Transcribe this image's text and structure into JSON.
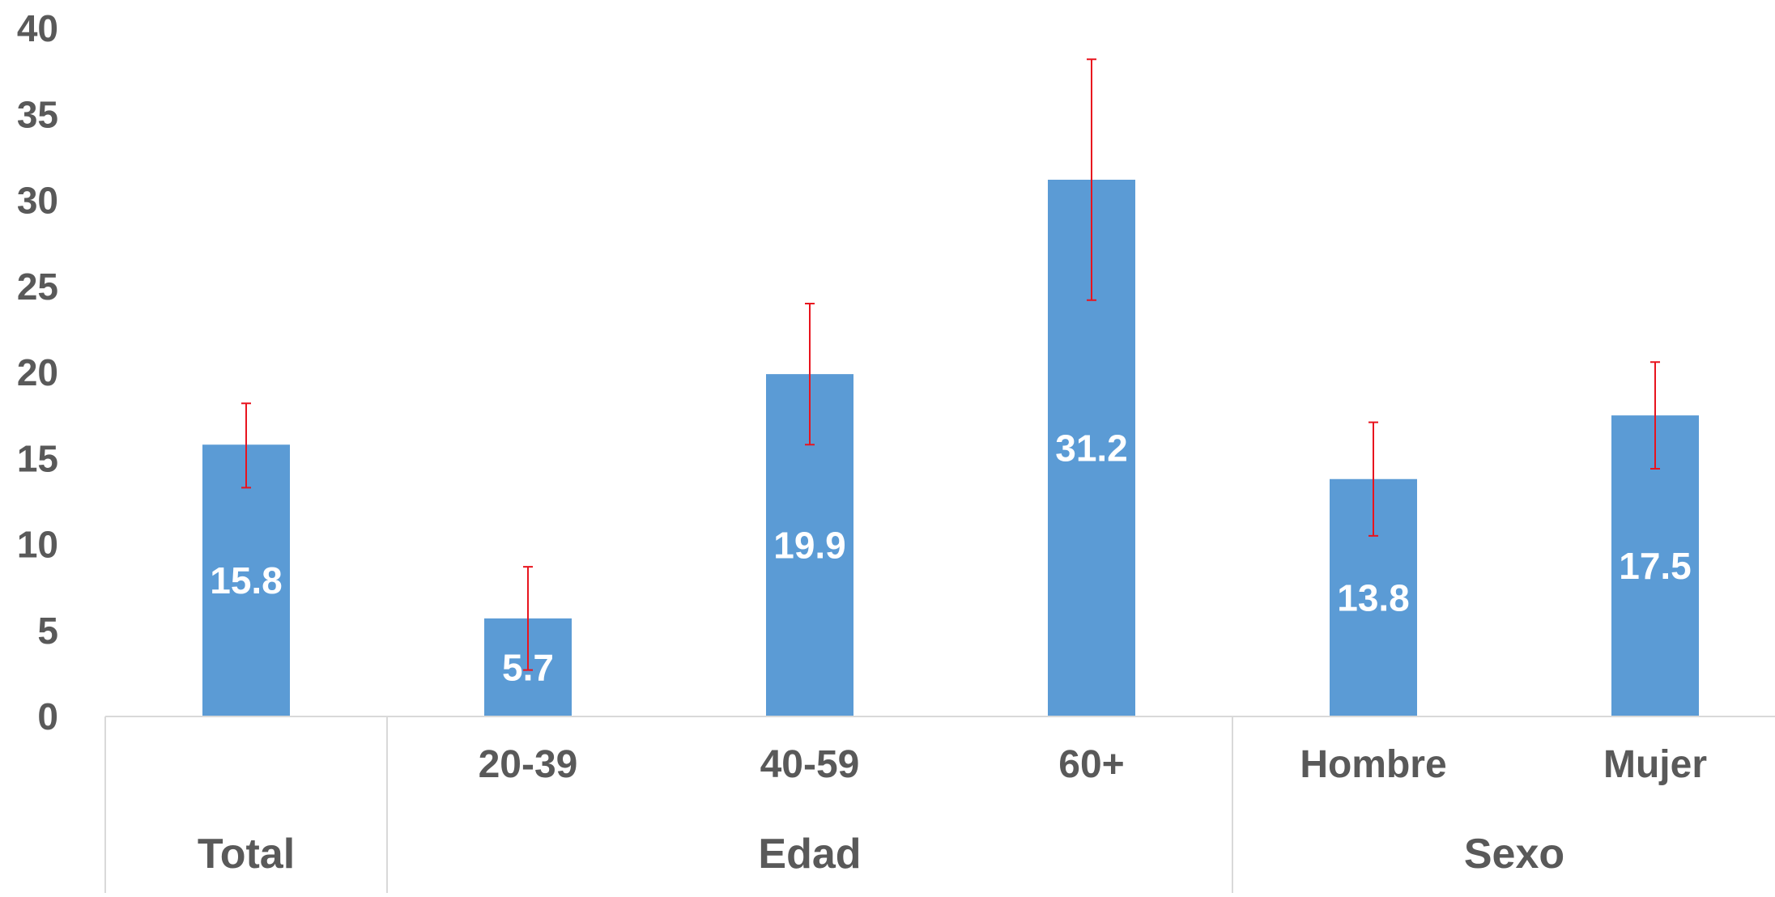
{
  "chart_data": {
    "type": "bar",
    "categories": [
      "Total",
      "20-39",
      "40-59",
      "60+",
      "Hombre",
      "Mujer"
    ],
    "groups": [
      {
        "label": "Total",
        "categories": [
          "Total"
        ]
      },
      {
        "label": "Edad",
        "categories": [
          "20-39",
          "40-59",
          "60+"
        ]
      },
      {
        "label": "Sexo",
        "categories": [
          "Hombre",
          "Mujer"
        ]
      }
    ],
    "values": [
      15.8,
      5.7,
      19.9,
      31.2,
      13.8,
      17.5
    ],
    "data_labels": [
      "15.8",
      "5.7",
      "19.9",
      "31.2",
      "13.8",
      "17.5"
    ],
    "error_bars": [
      {
        "low": 13.3,
        "high": 18.2
      },
      {
        "low": 2.7,
        "high": 8.7
      },
      {
        "low": 15.8,
        "high": 24.0
      },
      {
        "low": 24.2,
        "high": 38.2
      },
      {
        "low": 10.5,
        "high": 17.1
      },
      {
        "low": 14.4,
        "high": 20.6
      }
    ],
    "ylim": [
      0,
      40
    ],
    "yticks": [
      0,
      5,
      10,
      15,
      20,
      25,
      30,
      35,
      40
    ],
    "title": "",
    "xlabel": "",
    "ylabel": "",
    "grid": false,
    "legend": "none",
    "colors": {
      "bar": "#5B9BD5",
      "error_bar": "#E8141E",
      "axis_line": "#D9D9D9",
      "tick_text": "#595959",
      "data_label_text": "#FFFFFF"
    }
  }
}
